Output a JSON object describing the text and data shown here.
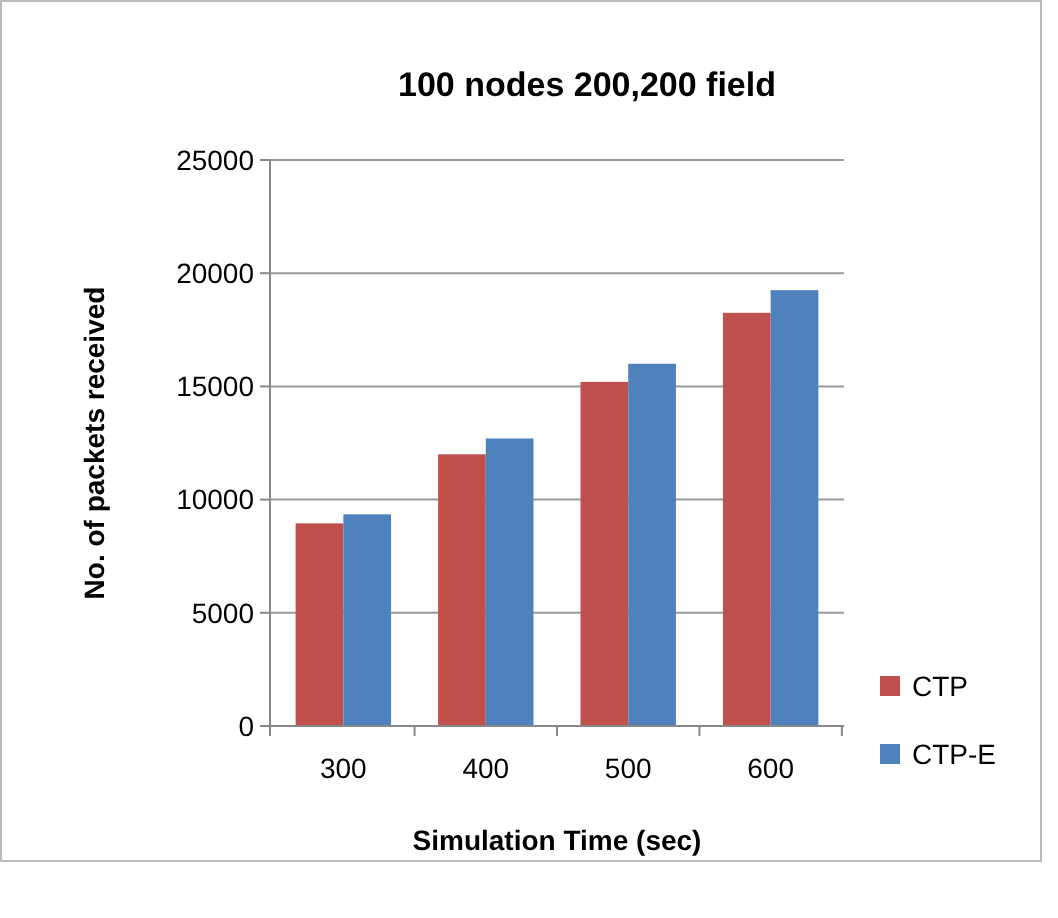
{
  "chart_data": {
    "type": "bar",
    "title": "100 nodes 200,200 field",
    "xlabel": "Simulation Time (sec)",
    "ylabel": "No. of packets received",
    "categories": [
      "300",
      "400",
      "500",
      "600"
    ],
    "series": [
      {
        "name": "CTP",
        "color": "#c0504d",
        "values": [
          8950,
          12000,
          15200,
          18250
        ]
      },
      {
        "name": "CTP-E",
        "color": "#4f81bd",
        "values": [
          9350,
          12700,
          16000,
          19250
        ]
      }
    ],
    "ylim": [
      0,
      25000
    ],
    "yticks": [
      0,
      5000,
      10000,
      15000,
      20000,
      25000
    ],
    "grid": "y",
    "legend": "right"
  }
}
